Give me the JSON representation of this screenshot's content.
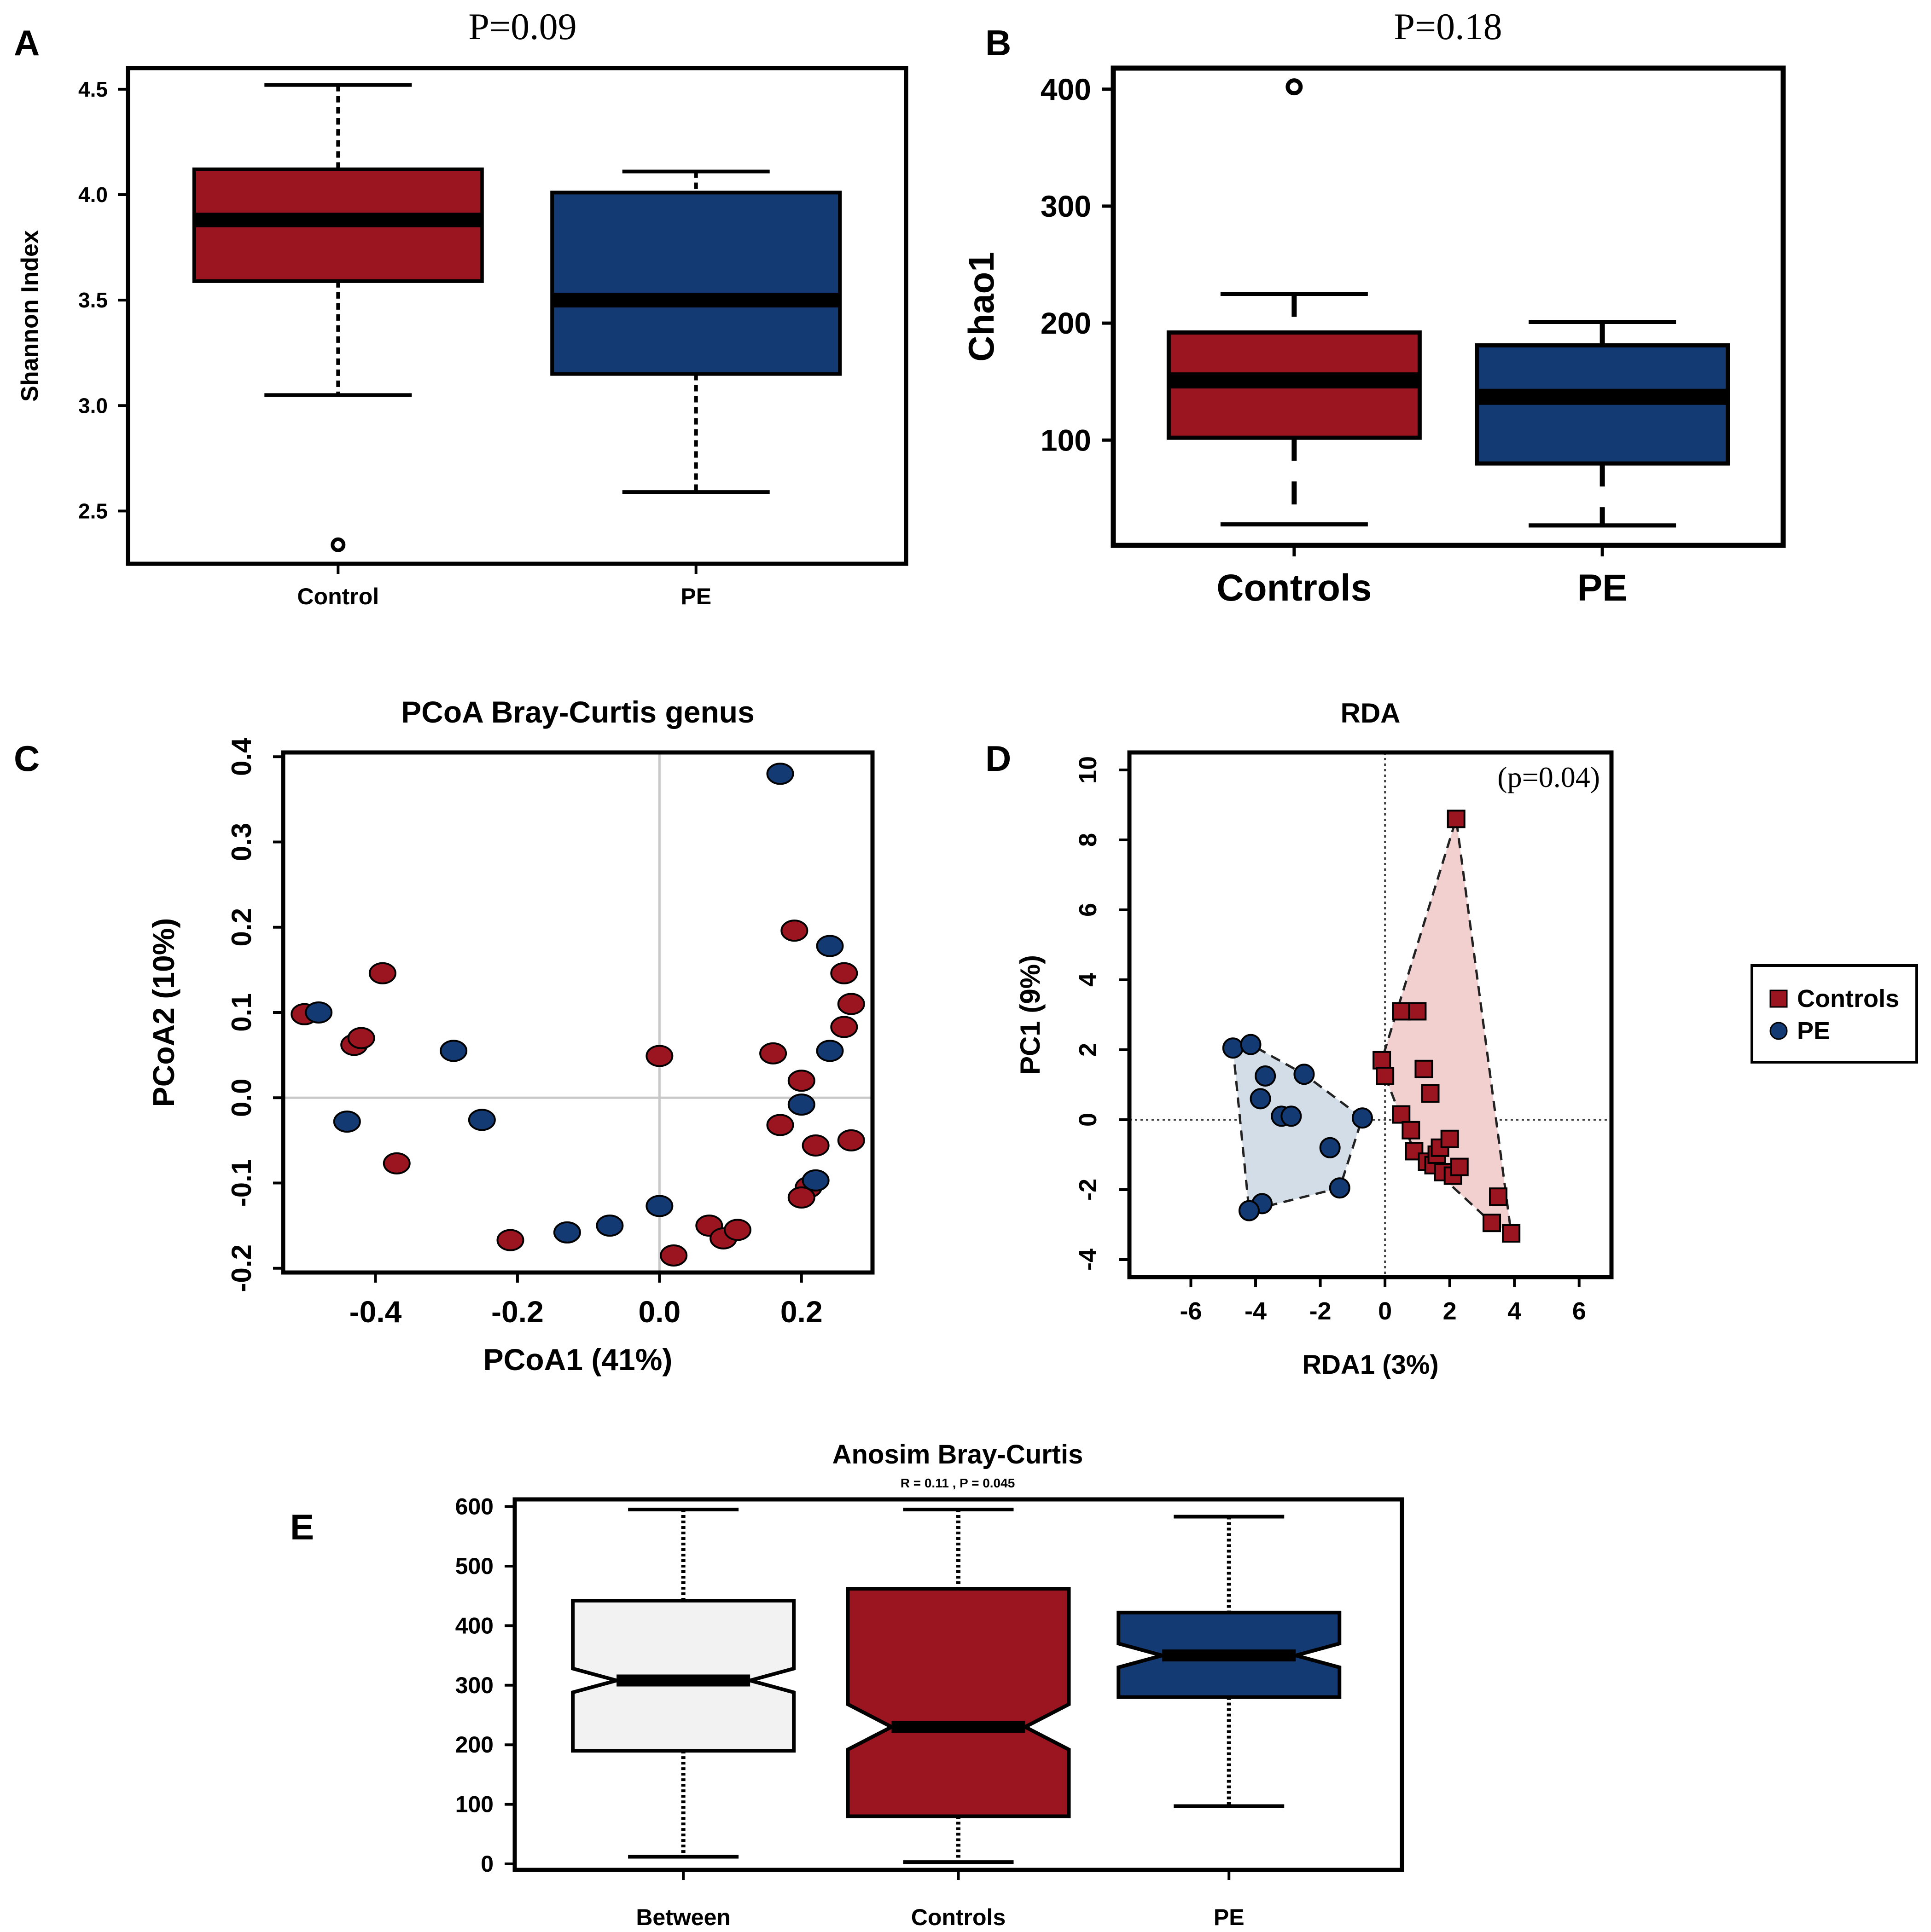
{
  "colors": {
    "control_red": "#9b1520",
    "pe_blue": "#143a74",
    "between_fill": "#f2f2f2",
    "rda_red_hull": "#f2d0d0",
    "rda_blue_hull": "#d3dde8"
  },
  "chart_data": [
    {
      "panel": "A",
      "type": "boxplot",
      "title": "P=0.09",
      "xlabel": "",
      "ylabel": "Shannon Index",
      "ylim": [
        2.25,
        4.6
      ],
      "yticks": [
        "2.5",
        "3.0",
        "3.5",
        "4.0",
        "4.5"
      ],
      "categories": [
        "Control",
        "PE"
      ],
      "boxes": [
        {
          "name": "Control",
          "whisker_low": 3.05,
          "q1": 3.59,
          "median": 3.88,
          "q3": 4.12,
          "whisker_high": 4.52,
          "outliers": [
            2.34
          ],
          "color": "#9b1520"
        },
        {
          "name": "PE",
          "whisker_low": 2.59,
          "q1": 3.15,
          "median": 3.5,
          "q3": 4.01,
          "whisker_high": 4.11,
          "outliers": [],
          "color": "#143a74"
        }
      ]
    },
    {
      "panel": "B",
      "type": "boxplot",
      "title": "P=0.18",
      "xlabel": "",
      "ylabel": "Chao1",
      "ylim": [
        10,
        418
      ],
      "yticks": [
        "100",
        "200",
        "300",
        "400"
      ],
      "categories": [
        "Controls",
        "PE"
      ],
      "boxes": [
        {
          "name": "Controls",
          "whisker_low": 28,
          "q1": 102,
          "median": 151,
          "q3": 192,
          "whisker_high": 225,
          "outliers": [
            402
          ],
          "color": "#9b1520"
        },
        {
          "name": "PE",
          "whisker_low": 27,
          "q1": 80,
          "median": 137,
          "q3": 181,
          "whisker_high": 201,
          "outliers": [],
          "color": "#143a74"
        }
      ]
    },
    {
      "panel": "C",
      "type": "scatter",
      "title": "PCoA Bray-Curtis genus",
      "xlabel": "PCoA1 (41%)",
      "ylabel": "PCoA2 (10%)",
      "xlim": [
        -0.53,
        0.3
      ],
      "ylim": [
        -0.205,
        0.405
      ],
      "xticks": [
        "-0.4",
        "-0.2",
        "0.0",
        "0.2"
      ],
      "yticks": [
        "-0.2",
        "-0.1",
        "0.0",
        "0.1",
        "0.2",
        "0.3",
        "0.4"
      ],
      "series": [
        {
          "name": "Control",
          "color": "#9b1520",
          "points": [
            [
              -0.5,
              0.098
            ],
            [
              -0.39,
              0.146
            ],
            [
              -0.43,
              0.062
            ],
            [
              -0.42,
              0.07
            ],
            [
              -0.37,
              -0.077
            ],
            [
              -0.21,
              -0.167
            ],
            [
              0.0,
              0.049
            ],
            [
              0.07,
              -0.15
            ],
            [
              0.09,
              -0.165
            ],
            [
              0.11,
              -0.155
            ],
            [
              0.02,
              -0.185
            ],
            [
              0.19,
              0.196
            ],
            [
              0.26,
              0.146
            ],
            [
              0.27,
              0.11
            ],
            [
              0.26,
              0.083
            ],
            [
              0.16,
              0.052
            ],
            [
              0.2,
              0.02
            ],
            [
              0.17,
              -0.032
            ],
            [
              0.27,
              -0.05
            ],
            [
              0.22,
              -0.056
            ],
            [
              0.21,
              -0.105
            ],
            [
              0.2,
              -0.117
            ]
          ]
        },
        {
          "name": "PE",
          "color": "#143a74",
          "points": [
            [
              -0.48,
              0.1
            ],
            [
              -0.44,
              -0.028
            ],
            [
              -0.29,
              0.055
            ],
            [
              -0.25,
              -0.026
            ],
            [
              -0.13,
              -0.158
            ],
            [
              -0.07,
              -0.15
            ],
            [
              0.0,
              -0.127
            ],
            [
              0.17,
              0.38
            ],
            [
              0.24,
              0.178
            ],
            [
              0.24,
              0.055
            ],
            [
              0.2,
              -0.008
            ],
            [
              0.22,
              -0.097
            ]
          ]
        }
      ]
    },
    {
      "panel": "D",
      "type": "scatter",
      "title": "RDA",
      "annotation": "(p=0.04)",
      "xlabel": "RDA1 (3%)",
      "ylabel": "PC1 (9%)",
      "xlim": [
        -7.9,
        7.0
      ],
      "ylim": [
        -4.5,
        10.5
      ],
      "xticks": [
        "-6",
        "-4",
        "-2",
        "0",
        "2",
        "4",
        "6"
      ],
      "yticks": [
        "-4",
        "-2",
        "0",
        "2",
        "4",
        "6",
        "8",
        "10"
      ],
      "legend": {
        "position": "right",
        "entries": [
          "Controls",
          "PE"
        ]
      },
      "series": [
        {
          "name": "Controls",
          "color": "#9b1520",
          "marker": "square",
          "points": [
            [
              2.2,
              8.6
            ],
            [
              0.5,
              3.1
            ],
            [
              1.0,
              3.1
            ],
            [
              1.2,
              1.45
            ],
            [
              1.4,
              0.75
            ],
            [
              -0.1,
              1.7
            ],
            [
              0.0,
              1.25
            ],
            [
              0.5,
              0.15
            ],
            [
              0.8,
              -0.3
            ],
            [
              0.9,
              -0.9
            ],
            [
              1.3,
              -1.2
            ],
            [
              1.5,
              -1.3
            ],
            [
              1.6,
              -1.0
            ],
            [
              1.7,
              -0.8
            ],
            [
              1.8,
              -1.5
            ],
            [
              2.0,
              -0.55
            ],
            [
              2.1,
              -1.6
            ],
            [
              2.3,
              -1.35
            ],
            [
              3.5,
              -2.2
            ],
            [
              3.3,
              -2.95
            ],
            [
              3.9,
              -3.25
            ]
          ]
        },
        {
          "name": "PE",
          "color": "#143a74",
          "marker": "circle",
          "points": [
            [
              -4.7,
              2.05
            ],
            [
              -4.15,
              2.15
            ],
            [
              -3.7,
              1.25
            ],
            [
              -3.85,
              0.6
            ],
            [
              -3.2,
              0.1
            ],
            [
              -2.9,
              0.1
            ],
            [
              -2.5,
              1.3
            ],
            [
              -0.7,
              0.05
            ],
            [
              -1.7,
              -0.8
            ],
            [
              -1.4,
              -1.95
            ],
            [
              -3.8,
              -2.4
            ],
            [
              -4.2,
              -2.6
            ]
          ]
        }
      ]
    },
    {
      "panel": "E",
      "type": "boxplot",
      "title": "Anosim Bray-Curtis",
      "subtitle": "R =  0.11 ,  P =  0.045",
      "xlabel": "",
      "ylabel": "",
      "ylim": [
        -10,
        612
      ],
      "yticks": [
        "0",
        "100",
        "200",
        "300",
        "400",
        "500",
        "600"
      ],
      "categories": [
        "Between",
        "Controls",
        "PE"
      ],
      "notched": true,
      "boxes": [
        {
          "name": "Between",
          "whisker_low": 12,
          "q1": 190,
          "median": 308,
          "q3": 442,
          "whisker_high": 595,
          "notch": [
            288,
            328
          ],
          "color": "#f2f2f2"
        },
        {
          "name": "Controls",
          "whisker_low": 3,
          "q1": 80,
          "median": 230,
          "q3": 462,
          "whisker_high": 595,
          "notch": [
            192,
            268
          ],
          "color": "#9b1520"
        },
        {
          "name": "PE",
          "whisker_low": 97,
          "q1": 280,
          "median": 350,
          "q3": 422,
          "whisker_high": 583,
          "notch": [
            330,
            370
          ],
          "color": "#143a74"
        }
      ]
    }
  ],
  "panel_letters": [
    "A",
    "B",
    "C",
    "D",
    "E"
  ]
}
